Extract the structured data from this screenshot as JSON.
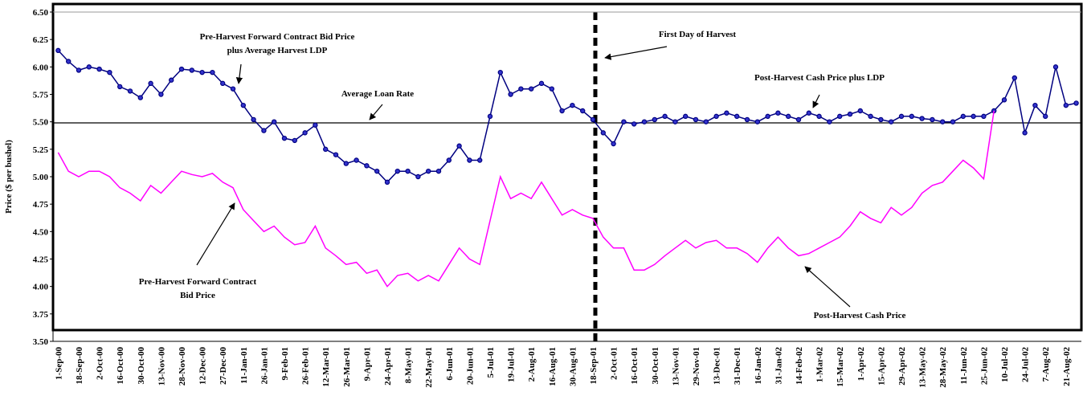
{
  "chart_data": {
    "type": "line",
    "y_label": "Price ($ per bushel)",
    "ylim": [
      3.5,
      6.5
    ],
    "yticks": [
      {
        "value": 3.5,
        "label": "3.50"
      },
      3.75,
      {
        "value": 4.0,
        "label": "4.00"
      },
      4.25,
      {
        "value": 4.5,
        "label": "4.50"
      },
      4.75,
      {
        "value": 5.0,
        "label": "5.00"
      },
      5.25,
      {
        "value": 5.5,
        "label": "5.50"
      },
      5.75,
      {
        "value": 6.0,
        "label": "6.00"
      },
      6.25,
      {
        "value": 6.5,
        "label": "6.50"
      }
    ],
    "categories": [
      "1-Sep-00",
      null,
      "18-Sep-00",
      null,
      "2-Oct-00",
      null,
      "16-Oct-00",
      null,
      "30-Oct-00",
      null,
      "13-Nov-00",
      null,
      "28-Nov-00",
      null,
      "12-Dec-00",
      null,
      "27-Dec-00",
      null,
      "11-Jan-01",
      null,
      "26-Jan-01",
      null,
      "9-Feb-01",
      null,
      "26-Feb-01",
      null,
      "12-Mar-01",
      null,
      "26-Mar-01",
      null,
      "9-Apr-01",
      null,
      "24-Apr-01",
      null,
      "8-May-01",
      null,
      "22-May-01",
      null,
      "6-Jun-01",
      null,
      "20-Jun-01",
      null,
      "5-Jul-01",
      null,
      "19-Jul-01",
      null,
      "2-Aug-01",
      null,
      "16-Aug-01",
      null,
      "30-Aug-01",
      null,
      "18-Sep-01",
      null,
      "2-Oct-01",
      null,
      "16-Oct-01",
      null,
      "30-Oct-01",
      null,
      "13-Nov-01",
      null,
      "29-Nov-01",
      null,
      "13-Dec-01",
      null,
      "31-Dec-01",
      null,
      "16-Jan-02",
      null,
      "31-Jan-02",
      null,
      "14-Feb-02",
      null,
      "1-Mar-02",
      null,
      "15-Mar-02",
      null,
      "1-Apr-02",
      null,
      "15-Apr-02",
      null,
      "29-Apr-02",
      null,
      "13-May-02",
      null,
      "28-May-02",
      null,
      "11-Jun-02",
      null,
      "25-Jun-02",
      null,
      "10-Jul-02",
      null,
      "24-Jul-02",
      null,
      "7-Aug-02",
      null,
      "21-Aug-02",
      null
    ],
    "series": [
      {
        "color": "#000080",
        "markers": true,
        "values": [
          6.15,
          6.05,
          5.97,
          6.0,
          5.98,
          5.95,
          5.82,
          5.78,
          5.72,
          5.85,
          5.75,
          5.88,
          5.98,
          5.97,
          5.95,
          5.95,
          5.85,
          5.8,
          5.65,
          5.52,
          5.42,
          5.5,
          5.35,
          5.33,
          5.4,
          5.47,
          5.25,
          5.2,
          5.12,
          5.15,
          5.1,
          5.05,
          4.95,
          5.05,
          5.05,
          5.0,
          5.05,
          5.05,
          5.15,
          5.28,
          5.15,
          5.15,
          5.55,
          5.95,
          5.75,
          5.8,
          5.8,
          5.85,
          5.8,
          5.6,
          5.65,
          5.6,
          5.52,
          5.4,
          5.3,
          5.5,
          5.48,
          5.5,
          5.52,
          5.55,
          5.5,
          5.55,
          5.52,
          5.5,
          5.55,
          5.58,
          5.55,
          5.52,
          5.5,
          5.55,
          5.58,
          5.55,
          5.52,
          5.58,
          5.55,
          5.5,
          5.55,
          5.57,
          5.6,
          5.55,
          5.52,
          5.5,
          5.55,
          5.55,
          5.53,
          5.52,
          5.5,
          5.5,
          5.55,
          5.55,
          5.55,
          5.6,
          5.7,
          5.9,
          5.4,
          5.65,
          5.55,
          6.0,
          5.65,
          5.67
        ]
      },
      {
        "color": "#ff00ff",
        "markers": false,
        "values": [
          5.22,
          5.05,
          5.0,
          5.05,
          5.05,
          5.0,
          4.9,
          4.85,
          4.78,
          4.92,
          4.85,
          4.95,
          5.05,
          5.02,
          5.0,
          5.03,
          4.95,
          4.9,
          4.7,
          4.6,
          4.5,
          4.55,
          4.45,
          4.38,
          4.4,
          4.55,
          4.35,
          4.28,
          4.2,
          4.22,
          4.12,
          4.15,
          4.0,
          4.1,
          4.12,
          4.05,
          4.1,
          4.05,
          4.2,
          4.35,
          4.25,
          4.2,
          4.6,
          5.0,
          4.8,
          4.85,
          4.8,
          4.95,
          4.8,
          4.65,
          4.7,
          4.65,
          4.62,
          4.45,
          4.35,
          4.35,
          4.15,
          4.15,
          4.2,
          4.28,
          4.35,
          4.42,
          4.35,
          4.4,
          4.42,
          4.35,
          4.35,
          4.3,
          4.22,
          4.35,
          4.45,
          4.35,
          4.28,
          4.3,
          4.35,
          4.4,
          4.45,
          4.55,
          4.68,
          4.62,
          4.58,
          4.72,
          4.65,
          4.72,
          4.85,
          4.92,
          4.95,
          5.05,
          5.15,
          5.08,
          4.98,
          5.6,
          null,
          null,
          null,
          null,
          null,
          null,
          null,
          null
        ]
      }
    ],
    "reference_line": {
      "value": 5.49
    },
    "annotations": [
      {
        "lines": [
          "Pre-Harvest Forward Contract Bid Price",
          "plus  Average Harvest LDP"
        ]
      },
      {
        "lines": [
          "Average Loan Rate"
        ]
      },
      {
        "lines": [
          "First Day of Harvest"
        ]
      },
      {
        "lines": [
          "Post-Harvest Cash Price plus LDP"
        ]
      },
      {
        "lines": [
          "Pre-Harvest Forward Contract",
          "Bid Price"
        ]
      },
      {
        "lines": [
          "Post-Harvest Cash Price"
        ]
      }
    ]
  }
}
